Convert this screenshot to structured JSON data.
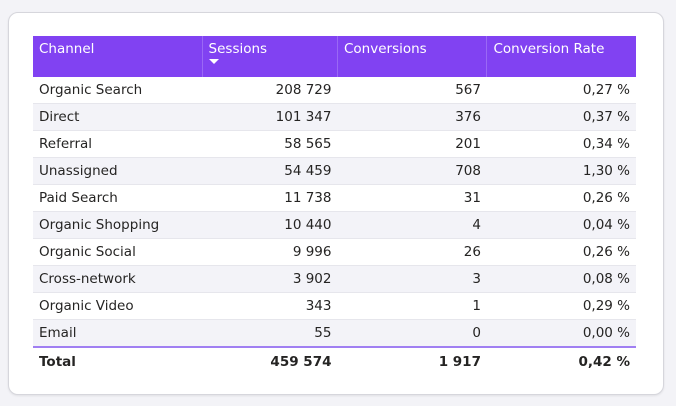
{
  "table": {
    "columns": [
      "Channel",
      "Sessions",
      "Conversions",
      "Conversion Rate"
    ],
    "sort_column": "Sessions",
    "sort_direction": "descending",
    "header_color": "#8142f2",
    "rows": [
      {
        "channel": "Organic Search",
        "sessions": "208 729",
        "conversions": "567",
        "rate": "0,27 %"
      },
      {
        "channel": "Direct",
        "sessions": "101 347",
        "conversions": "376",
        "rate": "0,37 %"
      },
      {
        "channel": "Referral",
        "sessions": "58 565",
        "conversions": "201",
        "rate": "0,34 %"
      },
      {
        "channel": "Unassigned",
        "sessions": "54 459",
        "conversions": "708",
        "rate": "1,30 %"
      },
      {
        "channel": "Paid Search",
        "sessions": "11 738",
        "conversions": "31",
        "rate": "0,26 %"
      },
      {
        "channel": "Organic Shopping",
        "sessions": "10 440",
        "conversions": "4",
        "rate": "0,04 %"
      },
      {
        "channel": "Organic Social",
        "sessions": "9 996",
        "conversions": "26",
        "rate": "0,26 %"
      },
      {
        "channel": "Cross-network",
        "sessions": "3 902",
        "conversions": "3",
        "rate": "0,08 %"
      },
      {
        "channel": "Organic Video",
        "sessions": "343",
        "conversions": "1",
        "rate": "0,29 %"
      },
      {
        "channel": "Email",
        "sessions": "55",
        "conversions": "0",
        "rate": "0,00 %"
      }
    ],
    "total": {
      "label": "Total",
      "sessions": "459 574",
      "conversions": "1 917",
      "rate": "0,42 %"
    }
  }
}
